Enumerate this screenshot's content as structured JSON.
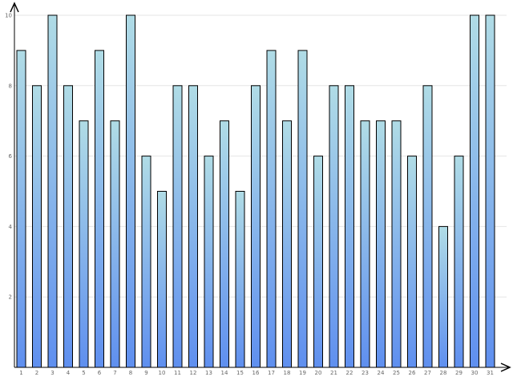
{
  "chart_data": {
    "type": "bar",
    "categories": [
      "1",
      "2",
      "3",
      "4",
      "5",
      "6",
      "7",
      "8",
      "9",
      "10",
      "11",
      "12",
      "13",
      "14",
      "15",
      "16",
      "17",
      "18",
      "19",
      "20",
      "21",
      "22",
      "23",
      "24",
      "25",
      "26",
      "27",
      "28",
      "29",
      "30",
      "31"
    ],
    "values": [
      9,
      8,
      10,
      8,
      7,
      9,
      7,
      10,
      6,
      5,
      8,
      8,
      6,
      7,
      5,
      8,
      9,
      7,
      9,
      6,
      8,
      8,
      7,
      7,
      7,
      6,
      8,
      4,
      6,
      10,
      10
    ],
    "yticks": [
      "2",
      "4",
      "6",
      "8",
      "10"
    ],
    "ylim": [
      0,
      10
    ],
    "grid": true,
    "title": "",
    "xlabel": "",
    "ylabel": "",
    "colors": {
      "bar_top": "#b0dce6",
      "bar_bottom": "#5f8fef",
      "bar_stroke": "#000000",
      "grid": "#e6e6e6",
      "axis": "#000000"
    }
  }
}
